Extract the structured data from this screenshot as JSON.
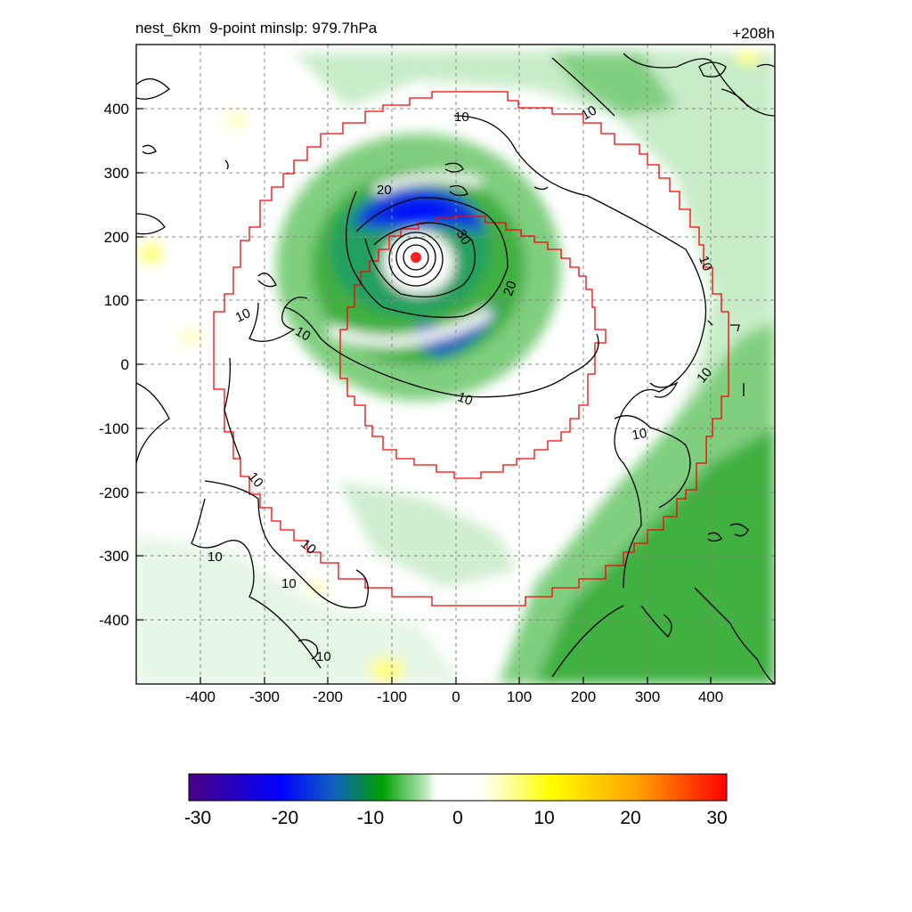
{
  "header": {
    "title": "nest_6km  9-point minslp: 979.7hPa",
    "forecast_hour": "+208h"
  },
  "axes": {
    "x_ticks": [
      "-400",
      "-300",
      "-200",
      "-100",
      "0",
      "100",
      "200",
      "300",
      "400"
    ],
    "y_ticks": [
      "400",
      "300",
      "200",
      "100",
      "0",
      "-100",
      "-200",
      "-300",
      "-400"
    ],
    "range": [
      -500,
      500
    ]
  },
  "colorbar": {
    "labels": [
      "-30",
      "-20",
      "-10",
      "0",
      "10",
      "20",
      "30"
    ],
    "range": [
      -30,
      30
    ],
    "colors": [
      "#4b0082",
      "#0000ff",
      "#00a000",
      "#ffffff",
      "#ffff00",
      "#ffa500",
      "#ff0000"
    ]
  },
  "contour_labels": [
    "10",
    "10",
    "10",
    "10",
    "10",
    "10",
    "10",
    "10",
    "10",
    "10",
    "10",
    "10",
    "10",
    "20",
    "20",
    "30"
  ],
  "storm_center": {
    "x": -60,
    "y": 165
  }
}
